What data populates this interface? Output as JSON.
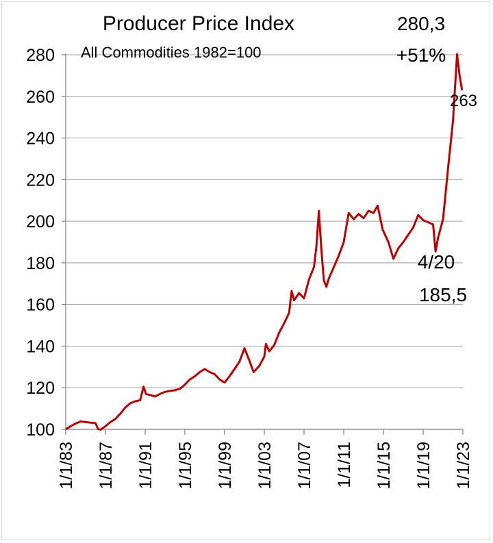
{
  "chart_data": {
    "type": "line",
    "title": "Producer Price Index",
    "subtitle": "All Commodities 1982=100",
    "xlabel": "",
    "ylabel": "",
    "ylim": [
      100,
      280
    ],
    "xlim": [
      "1983-01-01",
      "2023-01-01"
    ],
    "y_ticks": [
      "100",
      "120",
      "140",
      "160",
      "180",
      "200",
      "220",
      "240",
      "260",
      "280"
    ],
    "x_ticks": [
      "1/1/83",
      "1/1/87",
      "1/1/91",
      "1/1/95",
      "1/1/99",
      "1/1/03",
      "1/1/07",
      "1/1/11",
      "1/1/15",
      "1/1/19",
      "1/1/23"
    ],
    "grid": "horizontal",
    "legend": "none",
    "line_color": "#c00000",
    "series": [
      {
        "values": [
          [
            "1983-01",
            100.0
          ],
          [
            "1983-07",
            101.5
          ],
          [
            "1984-01",
            102.8
          ],
          [
            "1984-07",
            103.8
          ],
          [
            "1985-01",
            103.5
          ],
          [
            "1985-07",
            103.2
          ],
          [
            "1986-01",
            103.0
          ],
          [
            "1986-04",
            100.2
          ],
          [
            "1986-07",
            99.8
          ],
          [
            "1987-01",
            101.5
          ],
          [
            "1987-07",
            103.5
          ],
          [
            "1988-01",
            105.0
          ],
          [
            "1988-07",
            107.5
          ],
          [
            "1989-01",
            110.5
          ],
          [
            "1989-07",
            112.5
          ],
          [
            "1990-01",
            113.5
          ],
          [
            "1990-07",
            114.0
          ],
          [
            "1990-11",
            120.5
          ],
          [
            "1991-02",
            117.0
          ],
          [
            "1991-07",
            116.5
          ],
          [
            "1992-01",
            115.8
          ],
          [
            "1992-07",
            117.0
          ],
          [
            "1993-01",
            118.0
          ],
          [
            "1993-07",
            118.5
          ],
          [
            "1994-01",
            118.8
          ],
          [
            "1994-07",
            119.5
          ],
          [
            "1995-01",
            121.5
          ],
          [
            "1995-07",
            124.0
          ],
          [
            "1996-01",
            125.5
          ],
          [
            "1996-07",
            127.5
          ],
          [
            "1997-01",
            129.0
          ],
          [
            "1997-07",
            127.5
          ],
          [
            "1998-01",
            126.5
          ],
          [
            "1998-07",
            124.0
          ],
          [
            "1999-01",
            122.5
          ],
          [
            "1999-07",
            125.5
          ],
          [
            "2000-01",
            129.0
          ],
          [
            "2000-07",
            132.5
          ],
          [
            "2001-01",
            139.0
          ],
          [
            "2001-07",
            133.0
          ],
          [
            "2001-12",
            127.5
          ],
          [
            "2002-07",
            130.5
          ],
          [
            "2003-01",
            135.0
          ],
          [
            "2003-03",
            141.0
          ],
          [
            "2003-07",
            137.5
          ],
          [
            "2004-01",
            140.5
          ],
          [
            "2004-07",
            146.5
          ],
          [
            "2005-01",
            151.0
          ],
          [
            "2005-07",
            156.0
          ],
          [
            "2005-10",
            166.5
          ],
          [
            "2006-01",
            162.0
          ],
          [
            "2006-07",
            165.5
          ],
          [
            "2007-01",
            163.0
          ],
          [
            "2007-07",
            172.0
          ],
          [
            "2008-01",
            178.0
          ],
          [
            "2008-04",
            188.0
          ],
          [
            "2008-07",
            205.0
          ],
          [
            "2008-10",
            186.0
          ],
          [
            "2009-01",
            171.5
          ],
          [
            "2009-04",
            168.5
          ],
          [
            "2009-07",
            172.5
          ],
          [
            "2010-01",
            178.0
          ],
          [
            "2010-07",
            183.5
          ],
          [
            "2011-01",
            190.0
          ],
          [
            "2011-07",
            204.0
          ],
          [
            "2012-01",
            201.0
          ],
          [
            "2012-07",
            203.5
          ],
          [
            "2013-01",
            201.5
          ],
          [
            "2013-07",
            205.0
          ],
          [
            "2014-01",
            204.0
          ],
          [
            "2014-06",
            207.5
          ],
          [
            "2014-12",
            196.0
          ],
          [
            "2015-03",
            193.5
          ],
          [
            "2015-07",
            190.0
          ],
          [
            "2016-01",
            182.0
          ],
          [
            "2016-07",
            187.0
          ],
          [
            "2017-01",
            190.0
          ],
          [
            "2017-07",
            193.5
          ],
          [
            "2018-01",
            197.0
          ],
          [
            "2018-07",
            203.0
          ],
          [
            "2019-01",
            200.5
          ],
          [
            "2019-07",
            199.5
          ],
          [
            "2020-01",
            198.5
          ],
          [
            "2020-04",
            185.5
          ],
          [
            "2020-07",
            192.0
          ],
          [
            "2021-01",
            201.0
          ],
          [
            "2021-07",
            225.0
          ],
          [
            "2022-01",
            248.0
          ],
          [
            "2022-06",
            280.3
          ],
          [
            "2022-09",
            270.0
          ],
          [
            "2022-12",
            263.0
          ]
        ]
      }
    ],
    "annotations": {
      "peak_value": "280,3",
      "peak_change": "+51%",
      "last_value": "263",
      "low_date": "4/20",
      "low_value": "185,5"
    }
  }
}
